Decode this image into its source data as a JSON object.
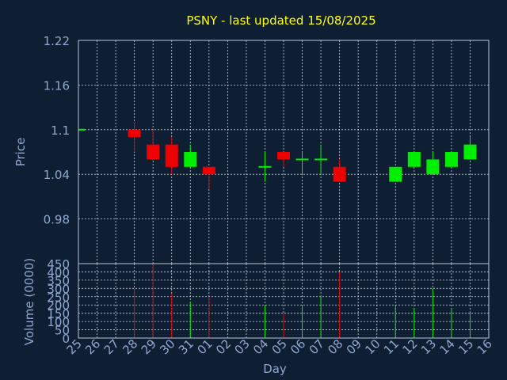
{
  "chart_data": {
    "type": "candlestick",
    "title": "PSNY - last updated 15/08/2025",
    "xlabel": "Day",
    "price_panel": {
      "ylabel": "Price",
      "ylim": [
        0.92,
        1.22
      ],
      "yticks": [
        "1.22",
        "1.16",
        "1.1",
        "1.04",
        "0.98"
      ],
      "ytick_values": [
        1.22,
        1.16,
        1.1,
        1.04,
        0.98
      ]
    },
    "volume_panel": {
      "ylabel": "Volume (0000)",
      "ylim": [
        0,
        450
      ],
      "yticks": [
        "450",
        "400",
        "350",
        "300",
        "250",
        "200",
        "150",
        "100",
        "50",
        "0"
      ],
      "ytick_values": [
        450,
        400,
        350,
        300,
        250,
        200,
        150,
        100,
        50,
        0
      ]
    },
    "x_ticks": [
      "25",
      "26",
      "27",
      "28",
      "29",
      "30",
      "31",
      "01",
      "02",
      "03",
      "04",
      "05",
      "06",
      "07",
      "08",
      "09",
      "10",
      "11",
      "12",
      "13",
      "14",
      "15",
      "16"
    ],
    "candles": [
      {
        "day": "25",
        "open": 1.1,
        "high": 1.1,
        "low": 1.1,
        "close": 1.1,
        "volume": 0
      },
      {
        "day": "28",
        "open": 1.1,
        "high": 1.11,
        "low": 1.07,
        "close": 1.09,
        "volume": 300
      },
      {
        "day": "29",
        "open": 1.08,
        "high": 1.1,
        "low": 1.06,
        "close": 1.06,
        "volume": 450
      },
      {
        "day": "30",
        "open": 1.08,
        "high": 1.09,
        "low": 1.04,
        "close": 1.05,
        "volume": 270
      },
      {
        "day": "31",
        "open": 1.05,
        "high": 1.08,
        "low": 1.05,
        "close": 1.07,
        "volume": 220
      },
      {
        "day": "01",
        "open": 1.05,
        "high": 1.05,
        "low": 1.02,
        "close": 1.04,
        "volume": 250
      },
      {
        "day": "04",
        "open": 1.05,
        "high": 1.07,
        "low": 1.03,
        "close": 1.05,
        "volume": 200
      },
      {
        "day": "05",
        "open": 1.07,
        "high": 1.07,
        "low": 1.05,
        "close": 1.06,
        "volume": 150
      },
      {
        "day": "06",
        "open": 1.06,
        "high": 1.07,
        "low": 1.04,
        "close": 1.06,
        "volume": 200
      },
      {
        "day": "07",
        "open": 1.06,
        "high": 1.08,
        "low": 1.04,
        "close": 1.06,
        "volume": 260
      },
      {
        "day": "08",
        "open": 1.05,
        "high": 1.06,
        "low": 1.03,
        "close": 1.03,
        "volume": 400
      },
      {
        "day": "11",
        "open": 1.03,
        "high": 1.05,
        "low": 1.03,
        "close": 1.05,
        "volume": 190
      },
      {
        "day": "12",
        "open": 1.05,
        "high": 1.07,
        "low": 1.05,
        "close": 1.07,
        "volume": 180
      },
      {
        "day": "13",
        "open": 1.04,
        "high": 1.07,
        "low": 1.04,
        "close": 1.06,
        "volume": 300
      },
      {
        "day": "14",
        "open": 1.05,
        "high": 1.07,
        "low": 1.05,
        "close": 1.07,
        "volume": 180
      },
      {
        "day": "15",
        "open": 1.06,
        "high": 1.09,
        "low": 1.06,
        "close": 1.08,
        "volume": 160
      }
    ],
    "grid": true,
    "colors": {
      "background": "#0f1f33",
      "title": "#ffff00",
      "axis_text": "#8fa8d0",
      "grid": "#c8d0dc",
      "up": "#00ee00",
      "down": "#ee0000",
      "frame": "#b8c4d4"
    }
  }
}
